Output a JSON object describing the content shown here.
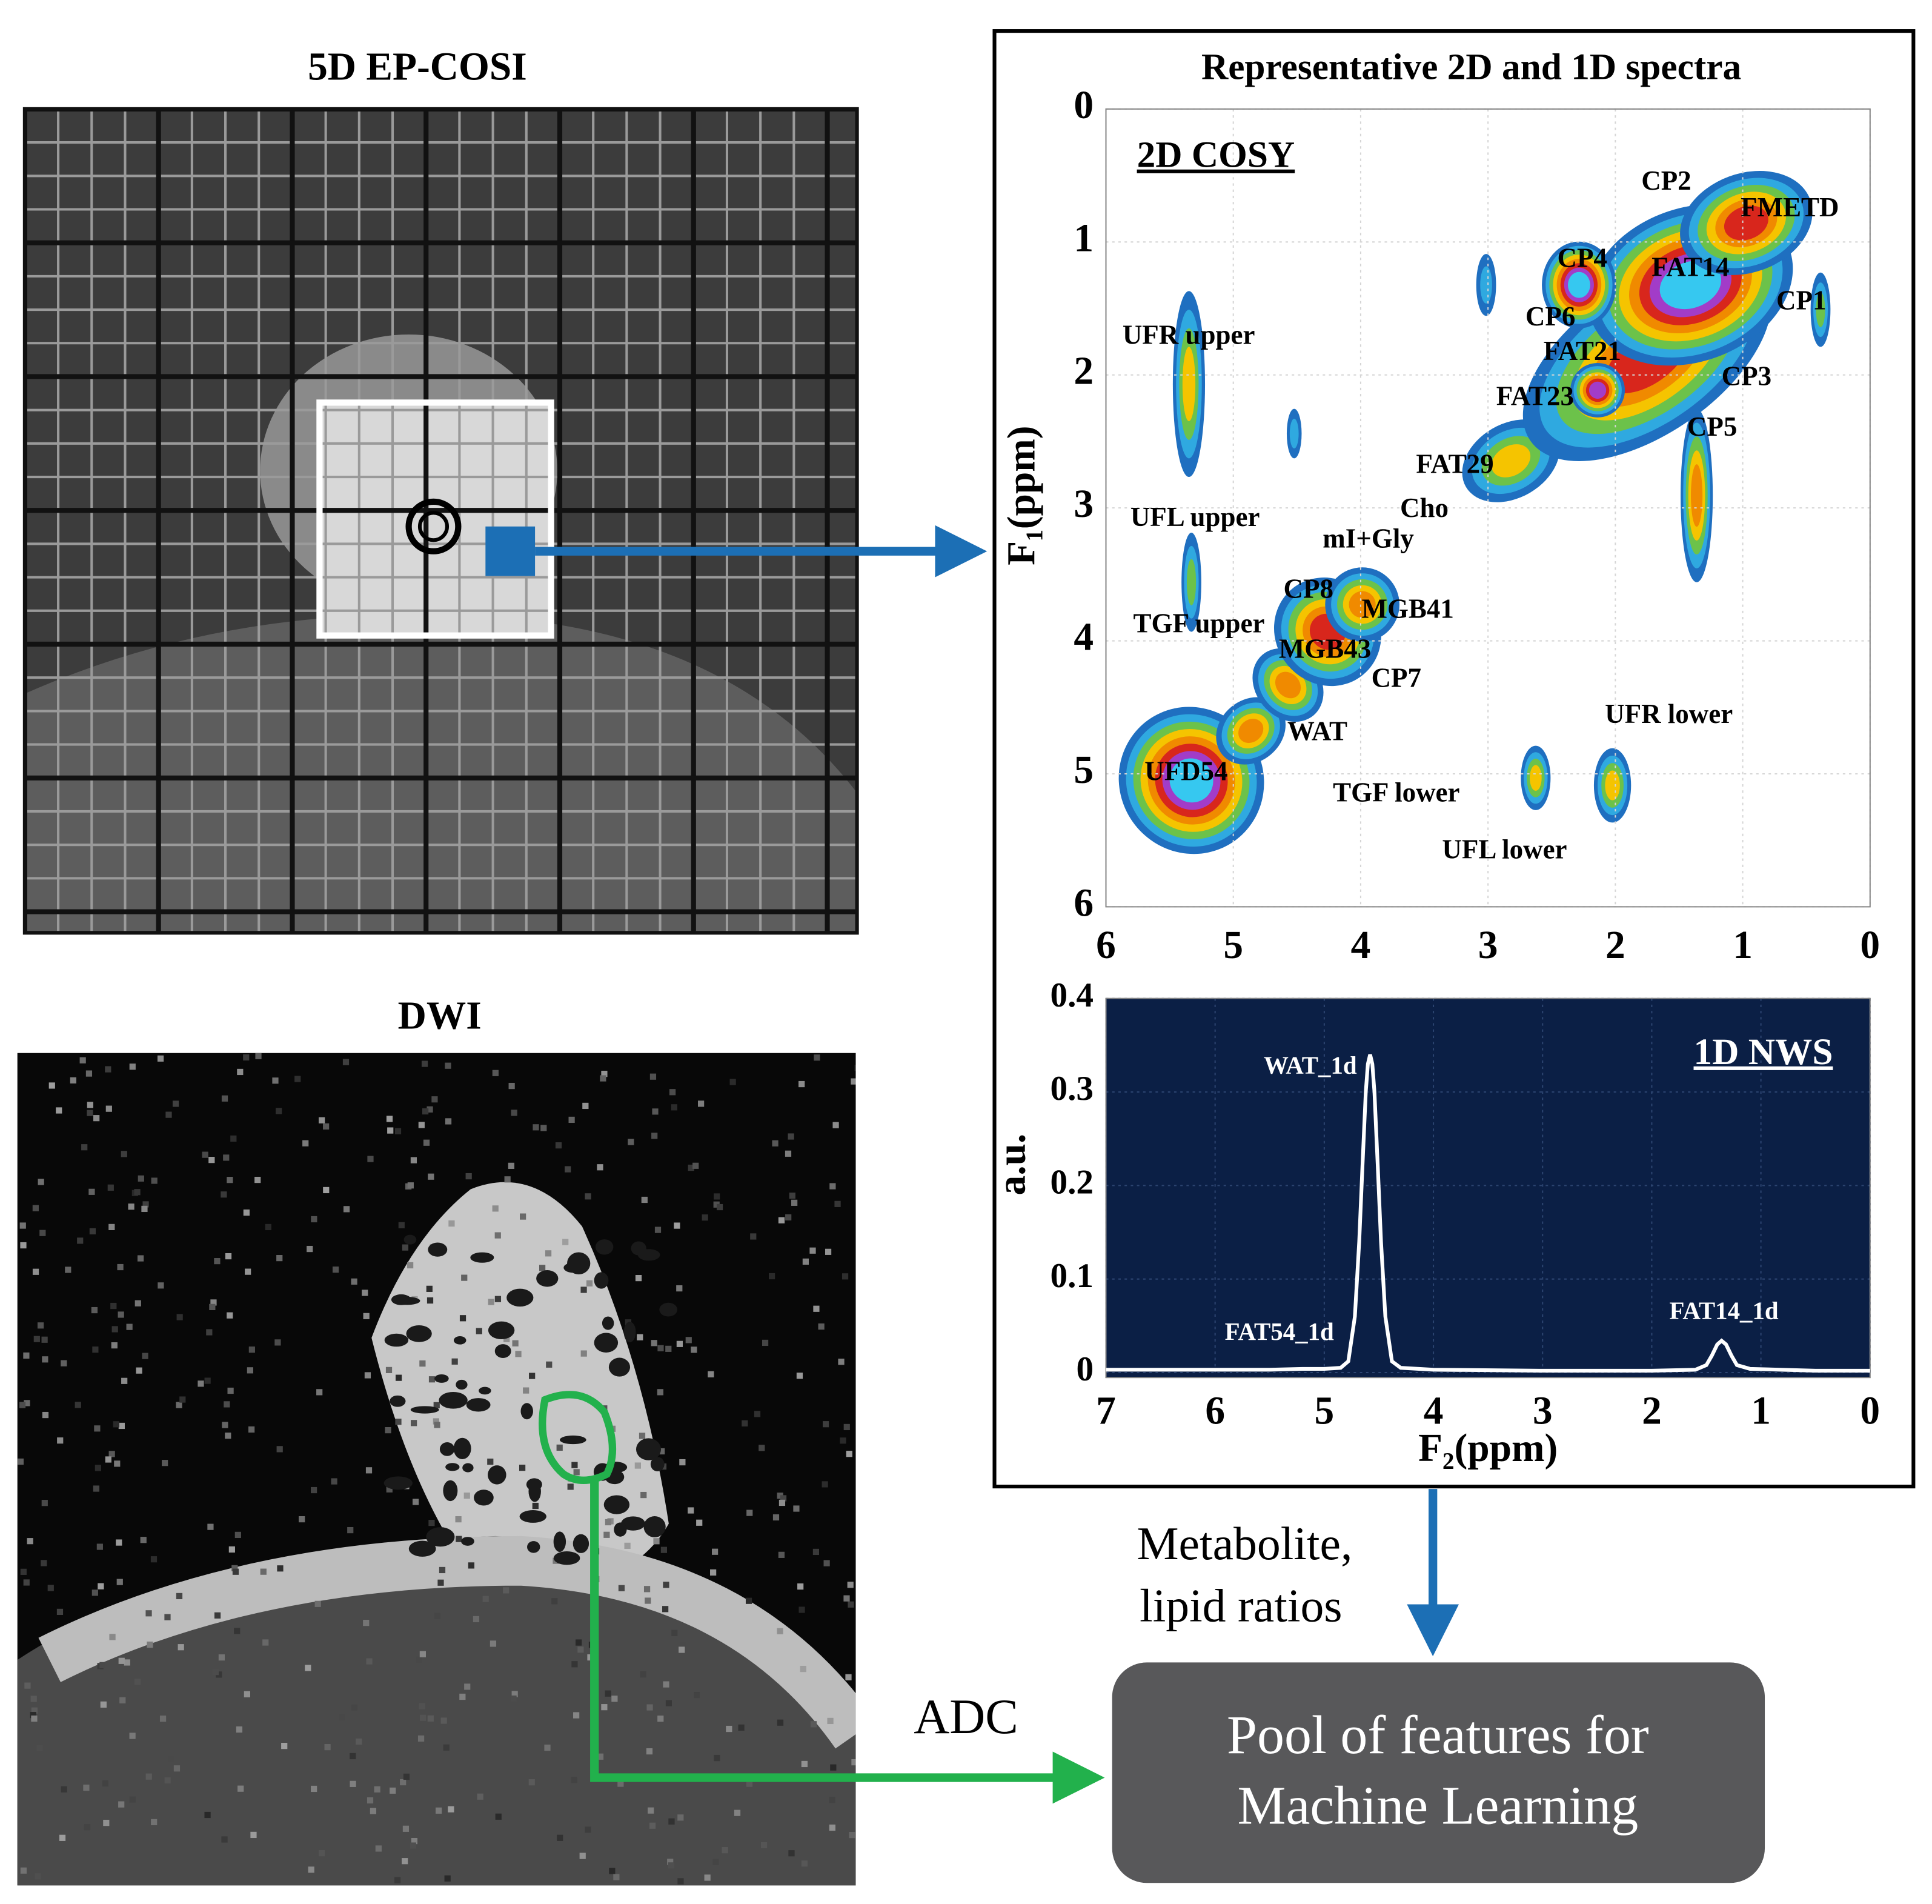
{
  "panels": {
    "ep_cosi_title": "5D EP-COSI",
    "dwi_title": "DWI",
    "spectra_title": "Representative 2D and 1D spectra"
  },
  "flow": {
    "metabolite_label": [
      "Metabolite,",
      "lipid ratios"
    ],
    "adc_label": "ADC",
    "pool_label": [
      "Pool of features for",
      "Machine Learning"
    ]
  },
  "chart_data": [
    {
      "type": "scatter",
      "title": "2D COSY",
      "y_label": "F₁(ppm)",
      "xlim": [
        6,
        0
      ],
      "ylim": [
        6,
        0
      ],
      "xticks": [
        6,
        5,
        4,
        3,
        2,
        1,
        0
      ],
      "yticks": [
        0,
        1,
        2,
        3,
        4,
        5,
        6
      ],
      "grid": true,
      "points": [
        {
          "name": "CP2",
          "x": 1.6,
          "y": 0.56
        },
        {
          "name": "FMETD",
          "x": 0.63,
          "y": 0.76
        },
        {
          "name": "CP4",
          "x": 2.26,
          "y": 1.14
        },
        {
          "name": "FAT14",
          "x": 1.41,
          "y": 1.21
        },
        {
          "name": "CP1",
          "x": 0.54,
          "y": 1.46
        },
        {
          "name": "CP6",
          "x": 2.51,
          "y": 1.58
        },
        {
          "name": "UFR upper",
          "x": 5.35,
          "y": 1.72
        },
        {
          "name": "FAT21",
          "x": 2.26,
          "y": 1.84
        },
        {
          "name": "CP3",
          "x": 0.97,
          "y": 2.03
        },
        {
          "name": "FAT23",
          "x": 2.63,
          "y": 2.18
        },
        {
          "name": "CP5",
          "x": 1.24,
          "y": 2.41
        },
        {
          "name": "FAT29",
          "x": 3.26,
          "y": 2.69
        },
        {
          "name": "Cho",
          "x": 3.5,
          "y": 3.02
        },
        {
          "name": "UFL upper",
          "x": 5.3,
          "y": 3.09
        },
        {
          "name": "mI+Gly",
          "x": 3.94,
          "y": 3.25
        },
        {
          "name": "CP8",
          "x": 4.41,
          "y": 3.63
        },
        {
          "name": "MGB41",
          "x": 3.63,
          "y": 3.78
        },
        {
          "name": "TGF upper",
          "x": 5.27,
          "y": 3.89
        },
        {
          "name": "MGB43",
          "x": 4.28,
          "y": 4.08
        },
        {
          "name": "CP7",
          "x": 3.72,
          "y": 4.3
        },
        {
          "name": "UFR lower",
          "x": 1.58,
          "y": 4.57
        },
        {
          "name": "WAT",
          "x": 4.34,
          "y": 4.7
        },
        {
          "name": "UFD54",
          "x": 5.37,
          "y": 5.0
        },
        {
          "name": "TGF lower",
          "x": 3.72,
          "y": 5.16
        },
        {
          "name": "UFL lower",
          "x": 2.87,
          "y": 5.59
        }
      ]
    },
    {
      "type": "line",
      "title": "1D NWS",
      "x_label": "F₂(ppm)",
      "y_label": "a.u.",
      "xlim": [
        7,
        0
      ],
      "ylim": [
        0,
        0.4
      ],
      "xticks": [
        7,
        6,
        5,
        4,
        3,
        2,
        1,
        0
      ],
      "yticks": [
        0,
        0.1,
        0.2,
        0.3,
        0.4
      ],
      "grid": true,
      "color": "#ffffff",
      "x": [
        7,
        6,
        5.5,
        5.2,
        5,
        4.85,
        4.78,
        4.72,
        4.68,
        4.65,
        4.62,
        4.6,
        4.58,
        4.56,
        4.54,
        4.51,
        4.48,
        4.44,
        4.38,
        4.3,
        4,
        3,
        2,
        1.6,
        1.5,
        1.45,
        1.4,
        1.36,
        1.32,
        1.27,
        1.22,
        1.1,
        0.5,
        0
      ],
      "values": [
        0.003,
        0.003,
        0.003,
        0.004,
        0.004,
        0.005,
        0.012,
        0.06,
        0.14,
        0.22,
        0.3,
        0.33,
        0.34,
        0.33,
        0.3,
        0.22,
        0.14,
        0.06,
        0.012,
        0.005,
        0.003,
        0.002,
        0.002,
        0.003,
        0.008,
        0.018,
        0.03,
        0.034,
        0.03,
        0.018,
        0.008,
        0.004,
        0.002,
        0.002
      ],
      "annotations": [
        "WAT_1d",
        "FAT54_1d",
        "FAT14_1d"
      ]
    }
  ]
}
